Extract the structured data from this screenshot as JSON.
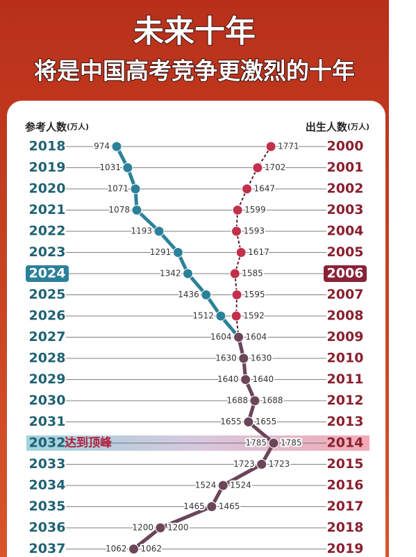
{
  "chart_data": {
    "type": "line",
    "title": "未来十年",
    "subtitle": "将是中国高考竞争更激烈的十年",
    "categories": [
      "2018",
      "2019",
      "2020",
      "2021",
      "2022",
      "2023",
      "2024",
      "2025",
      "2026",
      "2027",
      "2028",
      "2029",
      "2030",
      "2031",
      "2032",
      "2033",
      "2034",
      "2035",
      "2036",
      "2037"
    ],
    "right_categories": [
      "2000",
      "2001",
      "2002",
      "2003",
      "2004",
      "2005",
      "2006",
      "2007",
      "2008",
      "2009",
      "2010",
      "2011",
      "2012",
      "2013",
      "2014",
      "2015",
      "2016",
      "2017",
      "2018",
      "2019"
    ],
    "unit": "(万人)",
    "series": [
      {
        "name": "参考人数",
        "color": "#2b8199",
        "values": [
          974,
          1031,
          1071,
          1078,
          1193,
          1291,
          1342,
          1436,
          1512,
          1604,
          1630,
          1640,
          1688,
          1655,
          1785,
          1723,
          1524,
          1465,
          1200,
          1062
        ]
      },
      {
        "name": "出生人数",
        "color": "#c2304c",
        "values": [
          1771,
          1702,
          1647,
          1599,
          1593,
          1617,
          1585,
          1595,
          1592,
          1604,
          1630,
          1640,
          1688,
          1655,
          1785,
          1723,
          1524,
          1465,
          1200,
          1062
        ]
      }
    ],
    "merged_color": "#6a4658",
    "highlight": "2024",
    "annotation": {
      "category": "2032",
      "text": "达到顶峰"
    }
  }
}
